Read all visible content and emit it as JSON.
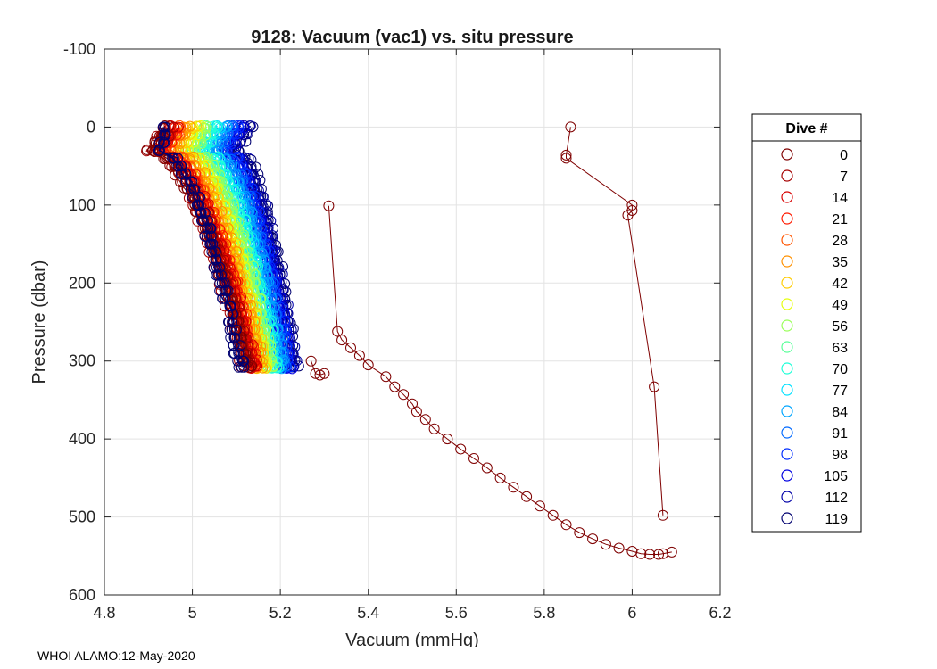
{
  "chart_data": {
    "type": "scatter",
    "title": "9128: Vacuum (vac1) vs. situ pressure",
    "xlabel": "Vacuum (mmHg)",
    "ylabel": "Pressure (dbar)",
    "xlim": [
      4.8,
      6.2
    ],
    "ylim": [
      -100,
      600
    ],
    "y_reversed": true,
    "grid": true,
    "x_ticks": [
      "4.8",
      "5",
      "5.2",
      "5.4",
      "5.6",
      "5.8",
      "6",
      "6.2"
    ],
    "y_ticks": [
      "-100",
      "0",
      "100",
      "200",
      "300",
      "400",
      "500",
      "600"
    ],
    "x_tick_values": [
      4.8,
      5.0,
      5.2,
      5.4,
      5.6,
      5.8,
      6.0,
      6.2
    ],
    "y_tick_values": [
      -100,
      0,
      100,
      200,
      300,
      400,
      500,
      600
    ],
    "legend": {
      "title": "Dive #",
      "placement": "right-outside",
      "entries": [
        {
          "label": "0",
          "color": "#7f0000"
        },
        {
          "label": "7",
          "color": "#a50000"
        },
        {
          "label": "14",
          "color": "#d80000"
        },
        {
          "label": "21",
          "color": "#ff1a00"
        },
        {
          "label": "28",
          "color": "#ff5500"
        },
        {
          "label": "35",
          "color": "#ff9100"
        },
        {
          "label": "42",
          "color": "#ffcc00"
        },
        {
          "label": "49",
          "color": "#e6ff0f"
        },
        {
          "label": "56",
          "color": "#9aff5b"
        },
        {
          "label": "63",
          "color": "#5bff9a"
        },
        {
          "label": "70",
          "color": "#1fffd8"
        },
        {
          "label": "77",
          "color": "#00e1ff"
        },
        {
          "label": "84",
          "color": "#00a5ff"
        },
        {
          "label": "91",
          "color": "#0069ff"
        },
        {
          "label": "98",
          "color": "#002dff"
        },
        {
          "label": "105",
          "color": "#0000e1"
        },
        {
          "label": "112",
          "color": "#0000a8"
        },
        {
          "label": "119",
          "color": "#000070"
        }
      ]
    },
    "dive0_profile": {
      "name": "0",
      "color": "#7f0000",
      "x": [
        5.86,
        5.85,
        5.85,
        6.0,
        6.0,
        5.99,
        6.05,
        6.07
      ],
      "y": [
        0,
        36,
        40,
        100,
        107,
        113,
        333,
        498
      ]
    },
    "dive0_ascent": {
      "name": "0",
      "color": "#7f0000",
      "x": [
        5.31,
        5.33,
        5.34,
        5.36,
        5.38,
        5.4,
        5.44,
        5.46,
        5.48,
        5.5,
        5.51,
        5.53,
        5.55,
        5.58,
        5.61,
        5.64,
        5.67,
        5.7,
        5.73,
        5.76,
        5.79,
        5.82,
        5.85,
        5.88,
        5.91,
        5.94,
        5.97,
        6.0,
        6.02,
        6.04,
        6.06,
        6.07,
        6.09
      ],
      "y": [
        101,
        262,
        273,
        283,
        293,
        305,
        320,
        333,
        343,
        355,
        365,
        375,
        387,
        400,
        413,
        425,
        437,
        450,
        462,
        474,
        486,
        498,
        510,
        520,
        528,
        535,
        540,
        544,
        547,
        548,
        548,
        547,
        545
      ]
    },
    "dive_profiles_summary": {
      "dives": [
        0,
        7,
        14,
        21,
        28,
        35,
        42,
        49,
        56,
        63,
        70,
        77,
        84,
        91,
        98,
        105,
        112,
        119
      ],
      "surface_vacuum_range": [
        4.92,
        5.16
      ],
      "bottom_pressure": 308,
      "bottom_vacuum_range": [
        5.11,
        5.24
      ]
    },
    "outlier_points": {
      "x": [
        5.27,
        5.28,
        5.29,
        5.3
      ],
      "y": [
        300,
        316,
        318,
        316
      ]
    }
  },
  "footer": {
    "text": "WHOI ALAMO:12-May-2020"
  }
}
